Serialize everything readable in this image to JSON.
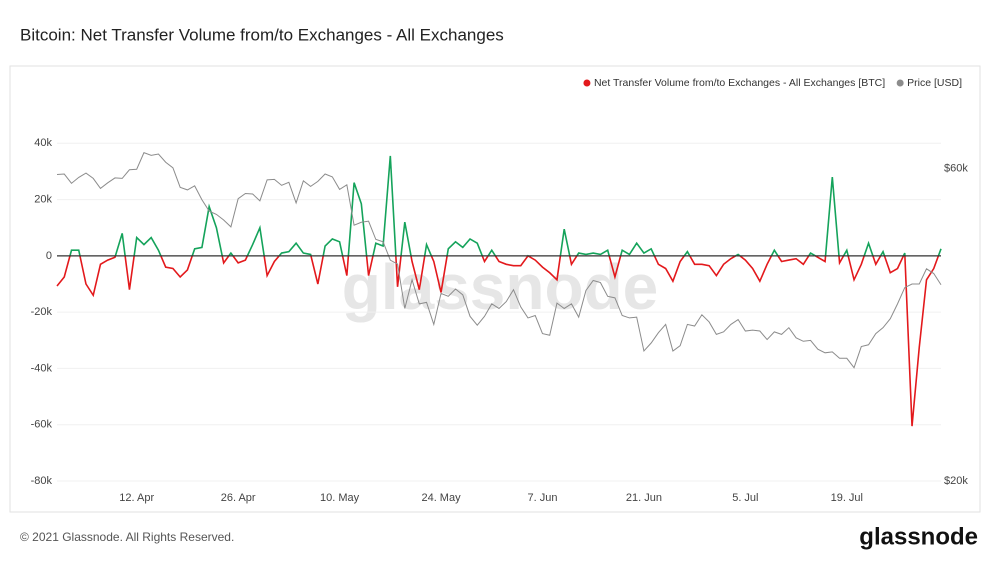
{
  "title": "Bitcoin: Net Transfer Volume from/to Exchanges - All Exchanges",
  "footer": "© 2021 Glassnode. All Rights Reserved.",
  "logo": "glassnode",
  "chart_data": {
    "type": "line",
    "watermark": "glassnode",
    "categories": [
      null,
      null,
      null,
      null,
      null,
      null,
      null,
      null,
      null,
      null,
      null,
      "12. Apr",
      null,
      null,
      null,
      null,
      null,
      null,
      null,
      null,
      null,
      null,
      null,
      null,
      null,
      "26. Apr",
      null,
      null,
      null,
      null,
      null,
      null,
      null,
      null,
      null,
      null,
      null,
      null,
      null,
      "10. May",
      null,
      null,
      null,
      null,
      null,
      null,
      null,
      null,
      null,
      null,
      null,
      null,
      null,
      "24. May",
      null,
      null,
      null,
      null,
      null,
      null,
      null,
      null,
      null,
      null,
      null,
      null,
      null,
      "7. Jun",
      null,
      null,
      null,
      null,
      null,
      null,
      null,
      null,
      null,
      null,
      null,
      null,
      null,
      "21. Jun",
      null,
      null,
      null,
      null,
      null,
      null,
      null,
      null,
      null,
      null,
      null,
      null,
      null,
      "5. Jul",
      null,
      null,
      null,
      null,
      null,
      null,
      null,
      null,
      null,
      null,
      null,
      null,
      null,
      "19. Jul",
      null,
      null,
      null,
      null,
      null,
      null,
      null,
      null,
      null,
      null,
      null,
      null,
      null
    ],
    "series": [
      {
        "name": "Net Transfer Volume from/to Exchanges - All Exchanges [BTC]",
        "color": "#e3191c",
        "positive_color": "#15a35b",
        "values": [
          -10700,
          -7500,
          2000,
          2000,
          -10000,
          -14000,
          -3000,
          -1500,
          -500,
          8000,
          -12000,
          6500,
          4000,
          6500,
          2000,
          -4000,
          -4500,
          -7500,
          -5000,
          2500,
          3000,
          17500,
          10000,
          -2500,
          1000,
          -2500,
          -1500,
          4000,
          10000,
          -7000,
          -2000,
          1000,
          1500,
          4500,
          1000,
          500,
          -10000,
          3500,
          6000,
          5000,
          -7000,
          26000,
          18500,
          -7000,
          4500,
          3500,
          35500,
          -11000,
          12000,
          -2000,
          -12000,
          4000,
          -2000,
          -13000,
          2500,
          5000,
          3000,
          6000,
          4500,
          -2000,
          2000,
          -2000,
          -3000,
          -3500,
          -3500,
          0,
          -1500,
          -4000,
          -6000,
          -8500,
          9500,
          -3000,
          1000,
          500,
          1000,
          500,
          2000,
          -7500,
          2000,
          500,
          4500,
          1000,
          2500,
          -3000,
          -4500,
          -9000,
          -2000,
          1500,
          -3000,
          -3000,
          -3500,
          -7000,
          -3000,
          -1000,
          500,
          -1500,
          -4500,
          -9000,
          -3000,
          2000,
          -2000,
          -1500,
          -1000,
          -3000,
          1000,
          -500,
          -2000,
          28000,
          -2500,
          2000,
          -8500,
          -3000,
          4500,
          -3000,
          1500,
          -6000,
          -4500,
          1000,
          -60500,
          -32500,
          -8500,
          -4500,
          2500
        ]
      },
      {
        "name": "Price [USD]",
        "color": "#8c8c8c",
        "axis": "y2",
        "values": [
          58800,
          58900,
          57000,
          58200,
          59100,
          58000,
          56000,
          57100,
          58100,
          58000,
          59800,
          59900,
          63500,
          62900,
          63200,
          61400,
          60200,
          56200,
          55700,
          56500,
          53800,
          51700,
          51100,
          50100,
          48900,
          54000,
          55000,
          54900,
          53600,
          57700,
          57800,
          56600,
          57200,
          53200,
          57500,
          56400,
          57400,
          58900,
          58300,
          55800,
          56700,
          49200,
          49700,
          49900,
          46800,
          46400,
          43500,
          42900,
          36700,
          40600,
          37300,
          37500,
          34700,
          38700,
          38300,
          39300,
          38500,
          35700,
          34600,
          35700,
          37300,
          36700,
          37600,
          39200,
          36900,
          35500,
          35800,
          33600,
          33400,
          37400,
          36700,
          37300,
          35600,
          39100,
          40500,
          40200,
          38300,
          38100,
          35800,
          35500,
          35600,
          31600,
          32500,
          33700,
          34700,
          31600,
          32200,
          34700,
          34500,
          35900,
          35000,
          33500,
          33800,
          34700,
          35300,
          33900,
          34000,
          33900,
          32900,
          33800,
          33500,
          34300,
          33100,
          32700,
          32800,
          31800,
          31400,
          31500,
          30800,
          30800,
          29800,
          32100,
          32300,
          33600,
          34300,
          35400,
          37300,
          39500,
          40000,
          40000,
          42200,
          41500,
          39900
        ]
      }
    ],
    "ylim": [
      -80000,
      60000
    ],
    "yticks": [
      {
        "value": -80000,
        "label": "-80k"
      },
      {
        "value": -60000,
        "label": "-60k"
      },
      {
        "value": -40000,
        "label": "-40k"
      },
      {
        "value": -20000,
        "label": "-20k"
      },
      0,
      {
        "value": 20000,
        "label": "20k"
      },
      {
        "value": 40000,
        "label": "40k"
      }
    ],
    "y2lim": [
      20000,
      80000
    ],
    "y2log": true,
    "y2ticks": [
      {
        "value": 20000,
        "label": "$20k"
      },
      {
        "value": 60000,
        "label": "$60k"
      }
    ],
    "grid": true,
    "legend": "top-right"
  }
}
